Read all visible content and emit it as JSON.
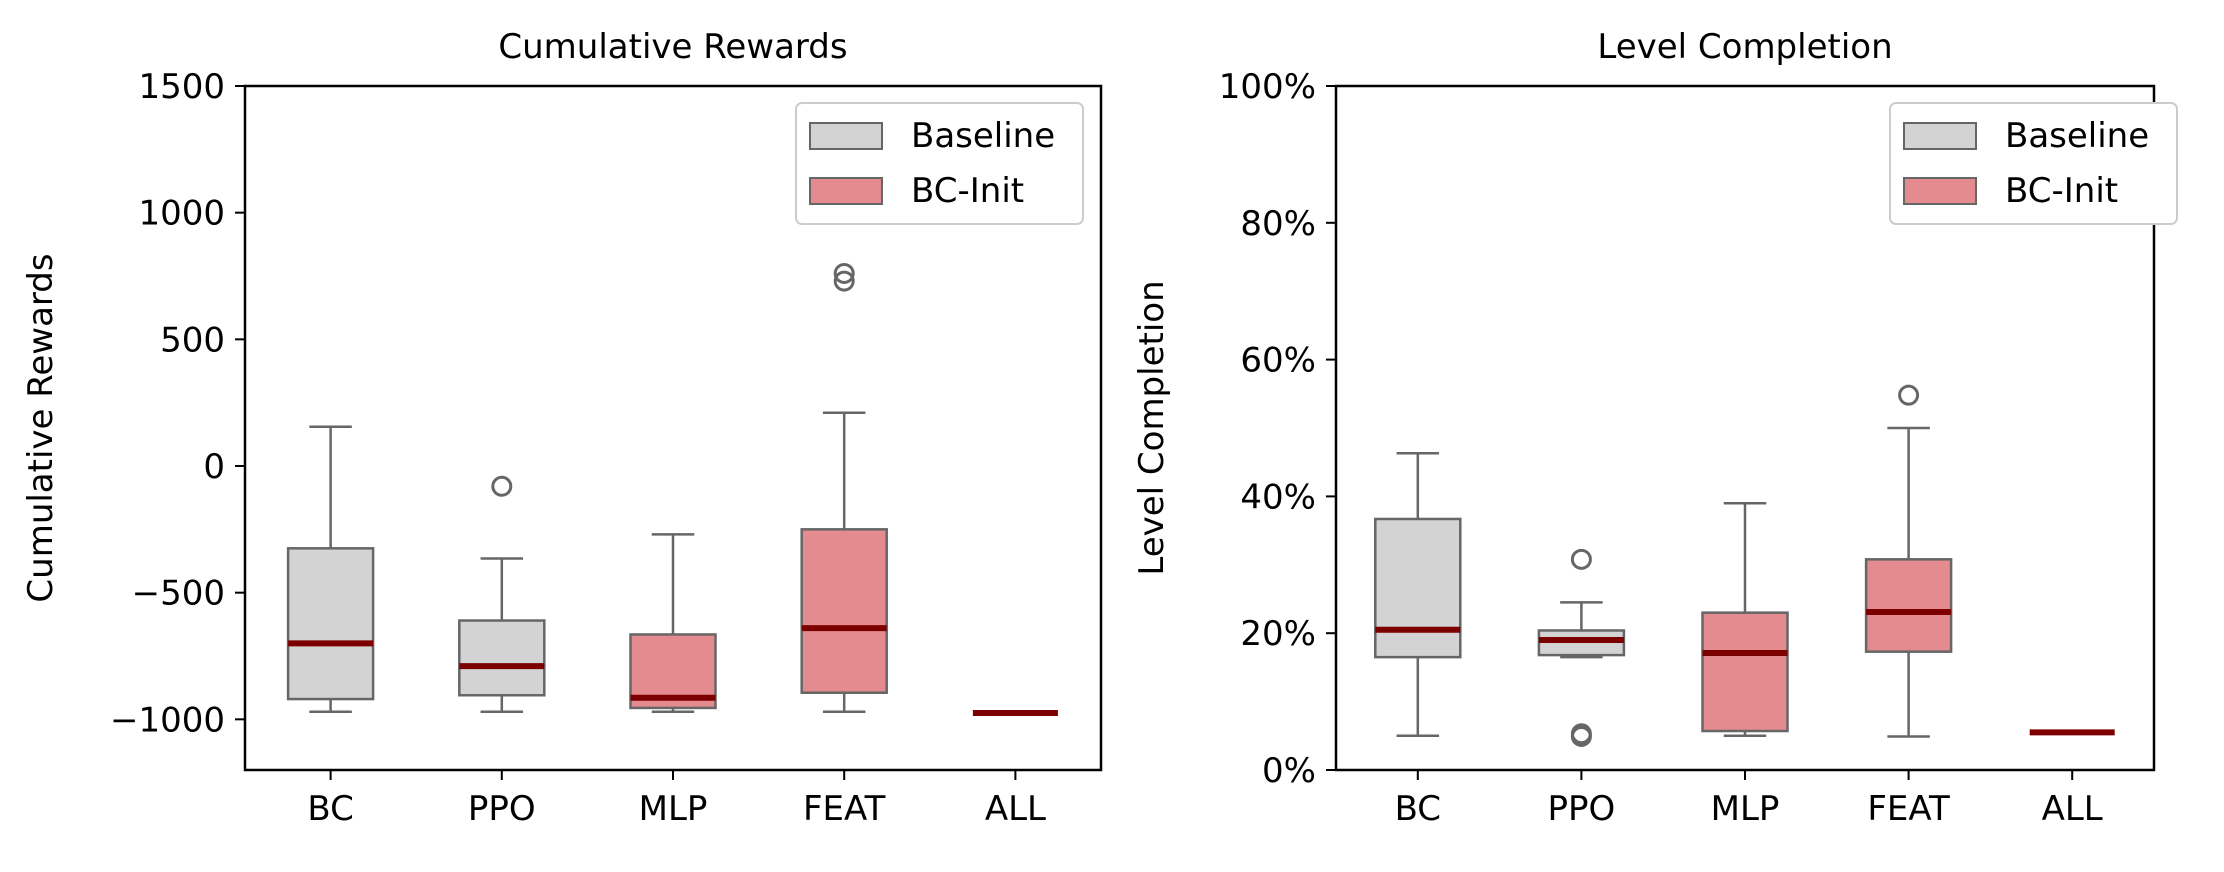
{
  "chart_data": [
    {
      "type": "box",
      "title": "Cumulative Rewards",
      "xlabel": "",
      "ylabel": "Cumulative Rewards",
      "ylim": [
        -1200,
        1500
      ],
      "yticks": [
        -1000,
        -500,
        0,
        500,
        1000,
        1500
      ],
      "ytick_labels": [
        "−1000",
        "−500",
        "0",
        "500",
        "1000",
        "1500"
      ],
      "categories": [
        "BC",
        "PPO",
        "MLP",
        "FEAT",
        "ALL"
      ],
      "legend": {
        "placement": "top-right",
        "entries": [
          "Baseline",
          "BC-Init"
        ]
      },
      "colors": {
        "Baseline": "#d3d3d3",
        "BC-Init": "#e38b8e",
        "median": "#7d0000",
        "edge": "#666666"
      },
      "boxes": [
        {
          "category": "BC",
          "group": "Baseline",
          "whisker_low": -970,
          "q1": -920,
          "median": -700,
          "q3": -325,
          "whisker_high": 155,
          "outliers": []
        },
        {
          "category": "PPO",
          "group": "Baseline",
          "whisker_low": -970,
          "q1": -905,
          "median": -790,
          "q3": -610,
          "whisker_high": -365,
          "outliers": [
            -80
          ]
        },
        {
          "category": "MLP",
          "group": "BC-Init",
          "whisker_low": -970,
          "q1": -955,
          "median": -915,
          "q3": -665,
          "whisker_high": -270,
          "outliers": []
        },
        {
          "category": "FEAT",
          "group": "BC-Init",
          "whisker_low": -970,
          "q1": -895,
          "median": -640,
          "q3": -250,
          "whisker_high": 210,
          "outliers": [
            730,
            760
          ]
        },
        {
          "category": "ALL",
          "group": "BC-Init",
          "whisker_low": -975,
          "q1": -975,
          "median": -975,
          "q3": -975,
          "whisker_high": -975,
          "outliers": []
        }
      ]
    },
    {
      "type": "box",
      "title": "Level Completion",
      "xlabel": "",
      "ylabel": "Level Completion",
      "ylim": [
        0,
        100
      ],
      "yticks": [
        0,
        20,
        40,
        60,
        80,
        100
      ],
      "ytick_labels": [
        "0%",
        "20%",
        "40%",
        "60%",
        "80%",
        "100%"
      ],
      "categories": [
        "BC",
        "PPO",
        "MLP",
        "FEAT",
        "ALL"
      ],
      "legend": {
        "placement": "top-right",
        "entries": [
          "Baseline",
          "BC-Init"
        ]
      },
      "colors": {
        "Baseline": "#d3d3d3",
        "BC-Init": "#e38b8e",
        "median": "#7d0000",
        "edge": "#666666"
      },
      "boxes": [
        {
          "category": "BC",
          "group": "Baseline",
          "whisker_low": 5,
          "q1": 16.5,
          "median": 20.5,
          "q3": 36.7,
          "whisker_high": 46.3,
          "outliers": []
        },
        {
          "category": "PPO",
          "group": "Baseline",
          "whisker_low": 16.5,
          "q1": 16.8,
          "median": 19,
          "q3": 20.4,
          "whisker_high": 24.5,
          "outliers": [
            30.8,
            5.3,
            4.9
          ]
        },
        {
          "category": "MLP",
          "group": "BC-Init",
          "whisker_low": 5,
          "q1": 5.7,
          "median": 17.1,
          "q3": 23,
          "whisker_high": 39,
          "outliers": []
        },
        {
          "category": "FEAT",
          "group": "BC-Init",
          "whisker_low": 4.9,
          "q1": 17.3,
          "median": 23.1,
          "q3": 30.8,
          "whisker_high": 50,
          "outliers": [
            54.8
          ]
        },
        {
          "category": "ALL",
          "group": "BC-Init",
          "whisker_low": 5.5,
          "q1": 5.5,
          "median": 5.5,
          "q3": 5.5,
          "whisker_high": 5.5,
          "outliers": []
        }
      ]
    }
  ]
}
